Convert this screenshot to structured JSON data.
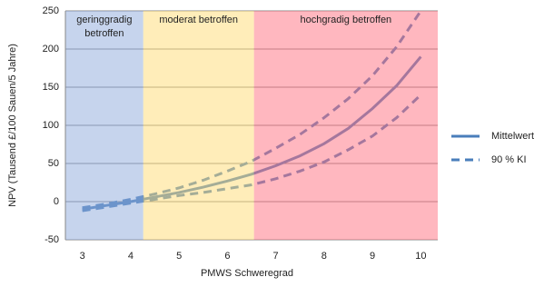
{
  "chart_data": {
    "type": "line",
    "x_label": "PMWS Schweregrad",
    "y_label": "NPV (Tausend £/100 Sauen/5 Jahre)",
    "x": [
      3,
      3.5,
      4,
      4.5,
      5,
      5.5,
      6,
      6.5,
      7,
      7.5,
      8,
      8.5,
      9,
      9.5,
      10
    ],
    "series": [
      {
        "name": "Mittelwert",
        "color": "#4a7ebb",
        "dash": false,
        "values": [
          -10,
          -5,
          0,
          6,
          12,
          19,
          27,
          36,
          47,
          60,
          76,
          96,
          122,
          152,
          190
        ]
      },
      {
        "name": "90 % KI",
        "color": "#4a7ebb",
        "dash": true,
        "upper": [
          -8,
          -3,
          3,
          10,
          18,
          28,
          40,
          53,
          70,
          88,
          110,
          135,
          165,
          203,
          250
        ],
        "lower": [
          -12,
          -7,
          -2,
          3,
          8,
          12,
          17,
          22,
          30,
          40,
          52,
          68,
          86,
          110,
          140
        ]
      }
    ],
    "regions": [
      {
        "label_lines": [
          "geringgradig",
          "betroffen"
        ],
        "from": 2.65,
        "to": 4.26,
        "color": "#8eaadb"
      },
      {
        "label_lines": [
          "moderat betroffen"
        ],
        "from": 4.26,
        "to": 6.55,
        "color": "#ffdc73"
      },
      {
        "label_lines": [
          "hochgradig betroffen"
        ],
        "from": 6.55,
        "to": 10.35,
        "color": "#ff7080"
      }
    ],
    "xlim": [
      2.65,
      10.35
    ],
    "xticks": [
      3,
      4,
      5,
      6,
      7,
      8,
      9,
      10
    ],
    "ylim": [
      -50,
      250
    ],
    "yticks": [
      -50,
      0,
      50,
      100,
      150,
      200,
      250
    ],
    "grid": true
  }
}
